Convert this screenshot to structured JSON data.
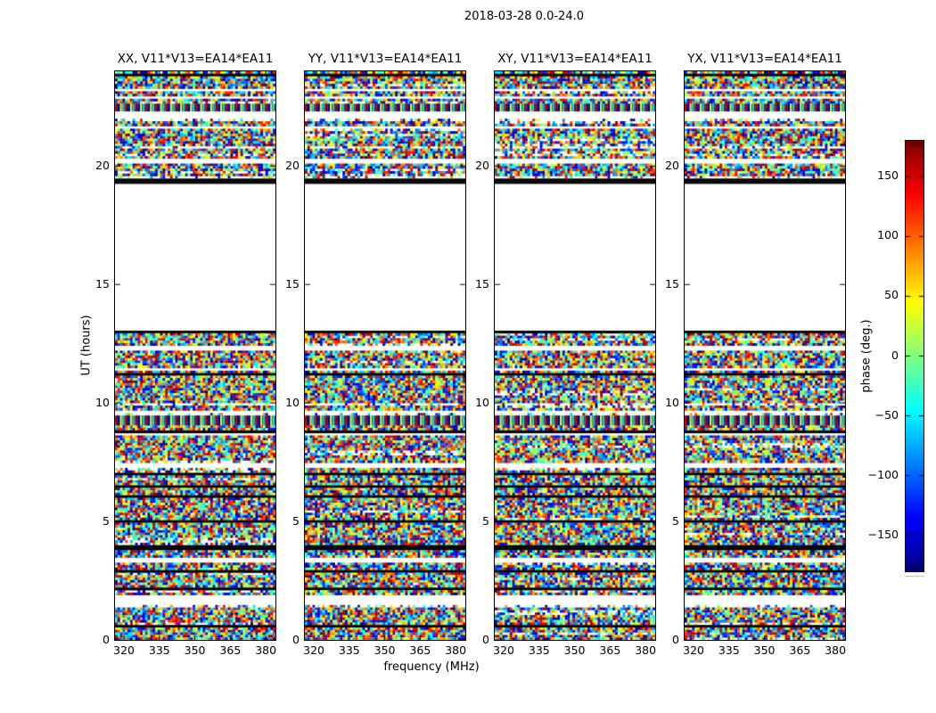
{
  "figure": {
    "title": "2018-03-28 0.0-24.0",
    "background": "#ffffff",
    "text_color": "#000000"
  },
  "chart_data": {
    "type": "heatmap",
    "title": "2018-03-28 0.0-24.0",
    "xlabel": "frequency (MHz)",
    "ylabel": "UT (hours)",
    "x_ticks": [
      320,
      335,
      350,
      365,
      380
    ],
    "y_ticks": [
      0,
      5,
      10,
      15,
      20
    ],
    "x_range_mhz": [
      316.2,
      384.1
    ],
    "y_range_hours": [
      0,
      24
    ],
    "grid": false,
    "panels": [
      {
        "pol": "XX",
        "title": "XX, V11*V13=EA14*EA11"
      },
      {
        "pol": "YY",
        "title": "YY, V11*V13=EA14*EA11"
      },
      {
        "pol": "XY",
        "title": "XY, V11*V13=EA14*EA11"
      },
      {
        "pol": "YX",
        "title": "YX, V11*V13=EA14*EA11"
      }
    ],
    "colorbar": {
      "label": "phase (deg.)",
      "ticks": [
        150,
        100,
        50,
        0,
        -50,
        -100,
        -150
      ],
      "range_deg": [
        -180,
        180
      ],
      "colormap": "jet"
    },
    "data_blocks_ut": [
      [
        0,
        13.05
      ],
      [
        19.3,
        24
      ]
    ],
    "flagged_gap_ut": [
      13.05,
      19.3
    ],
    "flag_bands": [
      {
        "type": "black",
        "ut": [
          23.81,
          23.89
        ]
      },
      {
        "type": "white",
        "ut": [
          23.17,
          23.25
        ]
      },
      {
        "type": "white",
        "ut": [
          22.8,
          22.91
        ]
      },
      {
        "type": "black",
        "ut": [
          22.61,
          22.68
        ]
      },
      {
        "type": "periodic",
        "ut": [
          22.31,
          22.61
        ]
      },
      {
        "type": "white",
        "ut": [
          22.01,
          22.31
        ]
      },
      {
        "type": "sparse",
        "ut": [
          21.93,
          22.01
        ]
      },
      {
        "type": "white",
        "ut": [
          21.85,
          21.93
        ]
      },
      {
        "type": "white",
        "ut": [
          21.55,
          21.67
        ]
      },
      {
        "type": "sparse",
        "ut": [
          20.77,
          20.88
        ]
      },
      {
        "type": "white",
        "ut": [
          20.12,
          20.35
        ]
      },
      {
        "type": "sparse",
        "ut": [
          19.49,
          19.6
        ]
      },
      {
        "type": "black",
        "ut": [
          19.3,
          19.49
        ]
      },
      {
        "type": "black",
        "ut": [
          12.94,
          13.05
        ]
      },
      {
        "type": "white",
        "ut": [
          12.26,
          12.38
        ]
      },
      {
        "type": "white",
        "ut": [
          11.4,
          11.51
        ]
      },
      {
        "type": "black",
        "ut": [
          11.17,
          11.28
        ]
      },
      {
        "type": "sparse",
        "ut": [
          9.89,
          10.01
        ]
      },
      {
        "type": "white",
        "ut": [
          9.59,
          9.7
        ]
      },
      {
        "type": "sparse",
        "ut": [
          9.44,
          9.59
        ]
      },
      {
        "type": "periodic",
        "ut": [
          9.07,
          9.44
        ]
      },
      {
        "type": "black",
        "ut": [
          8.73,
          8.88
        ]
      },
      {
        "type": "white",
        "ut": [
          8.61,
          8.73
        ]
      },
      {
        "type": "black",
        "ut": [
          8.17,
          8.24
        ]
      },
      {
        "type": "white",
        "ut": [
          7.87,
          7.94
        ]
      },
      {
        "type": "white",
        "ut": [
          7.3,
          7.45
        ]
      },
      {
        "type": "black",
        "ut": [
          6.99,
          7.06
        ]
      },
      {
        "type": "black",
        "ut": [
          6.47,
          6.54
        ]
      },
      {
        "type": "black",
        "ut": [
          5.98,
          6.09
        ]
      },
      {
        "type": "white",
        "ut": [
          5.53,
          5.6
        ]
      },
      {
        "type": "black",
        "ut": [
          4.93,
          5.04
        ]
      },
      {
        "type": "black",
        "ut": [
          3.84,
          3.95
        ]
      },
      {
        "type": "white",
        "ut": [
          3.31,
          3.5
        ]
      },
      {
        "type": "black",
        "ut": [
          2.82,
          2.93
        ]
      },
      {
        "type": "black",
        "ut": [
          2.07,
          2.18
        ]
      },
      {
        "type": "white",
        "ut": [
          1.43,
          1.92
        ]
      },
      {
        "type": "sparse",
        "ut": [
          1.32,
          1.43
        ]
      },
      {
        "type": "black",
        "ut": [
          0.56,
          0.68
        ]
      }
    ]
  }
}
